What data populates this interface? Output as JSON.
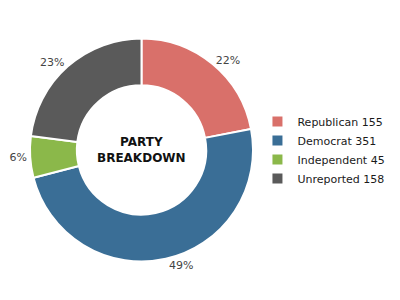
{
  "chart_data": {
    "type": "pie",
    "title": "PARTY\nBREAKDOWN",
    "categories": [
      "Republican 155",
      "Democrat 351",
      "Independent 45",
      "Unreported 158"
    ],
    "values": [
      22,
      49,
      6,
      23
    ],
    "value_labels": [
      "22%",
      "49%",
      "6%",
      "23%"
    ],
    "colors": [
      "#D9706A",
      "#3A6E96",
      "#8BB84A",
      "#5A5A5A"
    ],
    "data_labels": true,
    "legend": "right"
  }
}
